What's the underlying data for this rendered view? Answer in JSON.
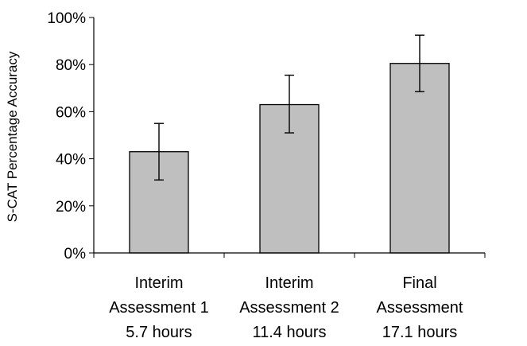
{
  "chart_data": {
    "type": "bar",
    "title": "",
    "xlabel": "",
    "ylabel": "S-CAT Percentage Accuracy",
    "ylim": [
      0,
      100
    ],
    "y_ticks": [
      "0%",
      "20%",
      "40%",
      "60%",
      "80%",
      "100%"
    ],
    "y_tick_values": [
      0,
      20,
      40,
      60,
      80,
      100
    ],
    "grid": false,
    "legend": "none",
    "categories": [
      [
        "Interim",
        "Assessment 1",
        "5.7 hours"
      ],
      [
        "Interim",
        "Assessment 2",
        "11.4 hours"
      ],
      [
        "Final",
        "Assessment",
        "17.1 hours"
      ]
    ],
    "values": [
      43,
      63,
      80.5
    ],
    "error_low": [
      31,
      51,
      68.5
    ],
    "error_high": [
      55,
      75.5,
      92.5
    ],
    "colors": {
      "bar_fill": "#bfbfbf",
      "bar_stroke": "#000000",
      "axis": "#000000",
      "error_bar": "#000000"
    }
  }
}
